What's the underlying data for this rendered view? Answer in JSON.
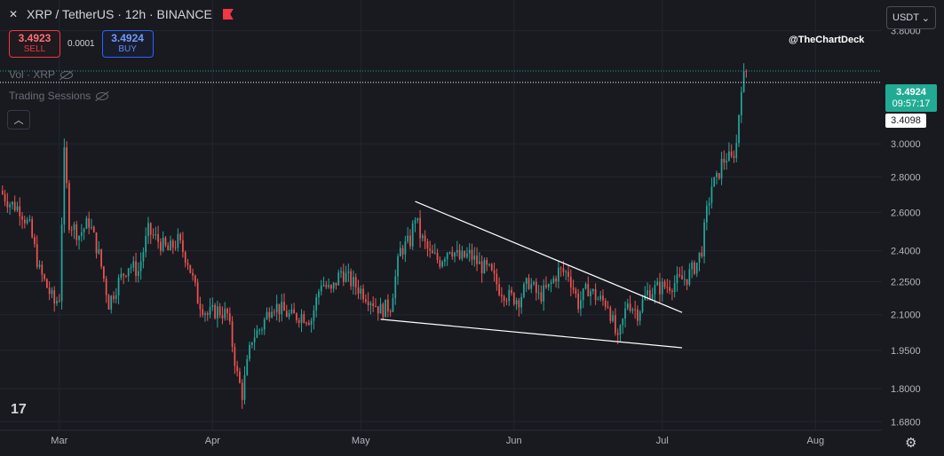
{
  "header": {
    "symbol_title": "XRP / TetherUS · 12h · BINANCE",
    "sell": {
      "price": "3.4923",
      "label": "SELL"
    },
    "spread": "0.0001",
    "buy": {
      "price": "3.4924",
      "label": "BUY"
    },
    "currency": "USDT"
  },
  "indicators": {
    "vol_label": "Vol · XRP",
    "sessions_label": "Trading Sessions"
  },
  "watermark": "@TheChartDeck",
  "price_label": {
    "price": "3.4924",
    "countdown": "09:57:17"
  },
  "ref_price_label": "3.4098",
  "colors": {
    "background": "#181a20",
    "grid": "#232631",
    "up": "#26a69a",
    "down": "#ef5350",
    "text": "#b2b5be",
    "trendline": "#ffffff",
    "last_price": "#22ab94"
  },
  "chart_data": {
    "type": "candlestick",
    "title": "XRP / TetherUS · 12h · BINANCE",
    "y_scale": "log",
    "ylim": [
      1.59,
      4.05
    ],
    "y_ticks": [
      1.68,
      1.8,
      1.95,
      2.1,
      2.25,
      2.4,
      2.6,
      2.8,
      3.0,
      3.8
    ],
    "y_tick_labels": [
      "1.6800",
      "1.8000",
      "1.9500",
      "2.1000",
      "2.2500",
      "2.4000",
      "2.6000",
      "2.8000",
      "3.0000",
      "3.8000"
    ],
    "x_tick_labels": [
      {
        "label": "Mar",
        "date": "2025-03-01"
      },
      {
        "label": "Apr",
        "date": "2025-04-01"
      },
      {
        "label": "May",
        "date": "2025-05-01"
      },
      {
        "label": "Jun",
        "date": "2025-06-01"
      },
      {
        "label": "Jul",
        "date": "2025-07-01"
      },
      {
        "label": "Aug",
        "date": "2025-08-01"
      }
    ],
    "x_range": [
      "2025-02-17",
      "2025-08-27"
    ],
    "close_path": [
      [
        "2025-02-17",
        2.72
      ],
      [
        "2025-02-19",
        2.65
      ],
      [
        "2025-02-21",
        2.62
      ],
      [
        "2025-02-23",
        2.52
      ],
      [
        "2025-02-25",
        2.3
      ],
      [
        "2025-02-27",
        2.2
      ],
      [
        "2025-02-28",
        2.15
      ],
      [
        "2025-03-01",
        2.18
      ],
      [
        "2025-03-02",
        2.93
      ],
      [
        "2025-03-03",
        2.55
      ],
      [
        "2025-03-05",
        2.48
      ],
      [
        "2025-03-07",
        2.55
      ],
      [
        "2025-03-09",
        2.38
      ],
      [
        "2025-03-11",
        2.15
      ],
      [
        "2025-03-13",
        2.25
      ],
      [
        "2025-03-15",
        2.33
      ],
      [
        "2025-03-17",
        2.3
      ],
      [
        "2025-03-19",
        2.5
      ],
      [
        "2025-03-21",
        2.45
      ],
      [
        "2025-03-23",
        2.4
      ],
      [
        "2025-03-25",
        2.45
      ],
      [
        "2025-03-27",
        2.35
      ],
      [
        "2025-03-29",
        2.17
      ],
      [
        "2025-03-31",
        2.1
      ],
      [
        "2025-04-02",
        2.12
      ],
      [
        "2025-04-04",
        2.1
      ],
      [
        "2025-04-06",
        1.85
      ],
      [
        "2025-04-07",
        1.78
      ],
      [
        "2025-04-09",
        2.0
      ],
      [
        "2025-04-11",
        2.05
      ],
      [
        "2025-04-13",
        2.15
      ],
      [
        "2025-04-15",
        2.12
      ],
      [
        "2025-04-17",
        2.09
      ],
      [
        "2025-04-19",
        2.1
      ],
      [
        "2025-04-21",
        2.08
      ],
      [
        "2025-04-23",
        2.25
      ],
      [
        "2025-04-25",
        2.2
      ],
      [
        "2025-04-27",
        2.3
      ],
      [
        "2025-04-29",
        2.25
      ],
      [
        "2025-05-01",
        2.21
      ],
      [
        "2025-05-03",
        2.17
      ],
      [
        "2025-05-05",
        2.12
      ],
      [
        "2025-05-07",
        2.14
      ],
      [
        "2025-05-09",
        2.4
      ],
      [
        "2025-05-11",
        2.45
      ],
      [
        "2025-05-12",
        2.58
      ],
      [
        "2025-05-13",
        2.48
      ],
      [
        "2025-05-15",
        2.38
      ],
      [
        "2025-05-17",
        2.35
      ],
      [
        "2025-05-19",
        2.42
      ],
      [
        "2025-05-21",
        2.36
      ],
      [
        "2025-05-23",
        2.38
      ],
      [
        "2025-05-25",
        2.33
      ],
      [
        "2025-05-27",
        2.3
      ],
      [
        "2025-05-29",
        2.22
      ],
      [
        "2025-05-31",
        2.18
      ],
      [
        "2025-06-02",
        2.17
      ],
      [
        "2025-06-04",
        2.25
      ],
      [
        "2025-06-06",
        2.18
      ],
      [
        "2025-06-08",
        2.22
      ],
      [
        "2025-06-10",
        2.3
      ],
      [
        "2025-06-12",
        2.29
      ],
      [
        "2025-06-14",
        2.15
      ],
      [
        "2025-06-16",
        2.22
      ],
      [
        "2025-06-18",
        2.17
      ],
      [
        "2025-06-20",
        2.15
      ],
      [
        "2025-06-22",
        1.98
      ],
      [
        "2025-06-24",
        2.16
      ],
      [
        "2025-06-26",
        2.11
      ],
      [
        "2025-06-28",
        2.2
      ],
      [
        "2025-06-30",
        2.22
      ],
      [
        "2025-07-02",
        2.23
      ],
      [
        "2025-07-04",
        2.25
      ],
      [
        "2025-07-06",
        2.27
      ],
      [
        "2025-07-08",
        2.34
      ],
      [
        "2025-07-09",
        2.41
      ],
      [
        "2025-07-10",
        2.6
      ],
      [
        "2025-07-11",
        2.75
      ],
      [
        "2025-07-12",
        2.78
      ],
      [
        "2025-07-13",
        2.88
      ],
      [
        "2025-07-14",
        2.92
      ],
      [
        "2025-07-15",
        2.9
      ],
      [
        "2025-07-16",
        3.0
      ],
      [
        "2025-07-17",
        3.4
      ],
      [
        "2025-07-18",
        3.49
      ]
    ],
    "trendlines": [
      {
        "name": "upper",
        "from": [
          "2025-05-12",
          2.66
        ],
        "to": [
          "2025-07-05",
          2.11
        ]
      },
      {
        "name": "lower",
        "from": [
          "2025-05-05",
          2.08
        ],
        "to": [
          "2025-07-05",
          1.96
        ]
      }
    ],
    "last_price": 3.4924,
    "ref_price": 3.4098
  }
}
